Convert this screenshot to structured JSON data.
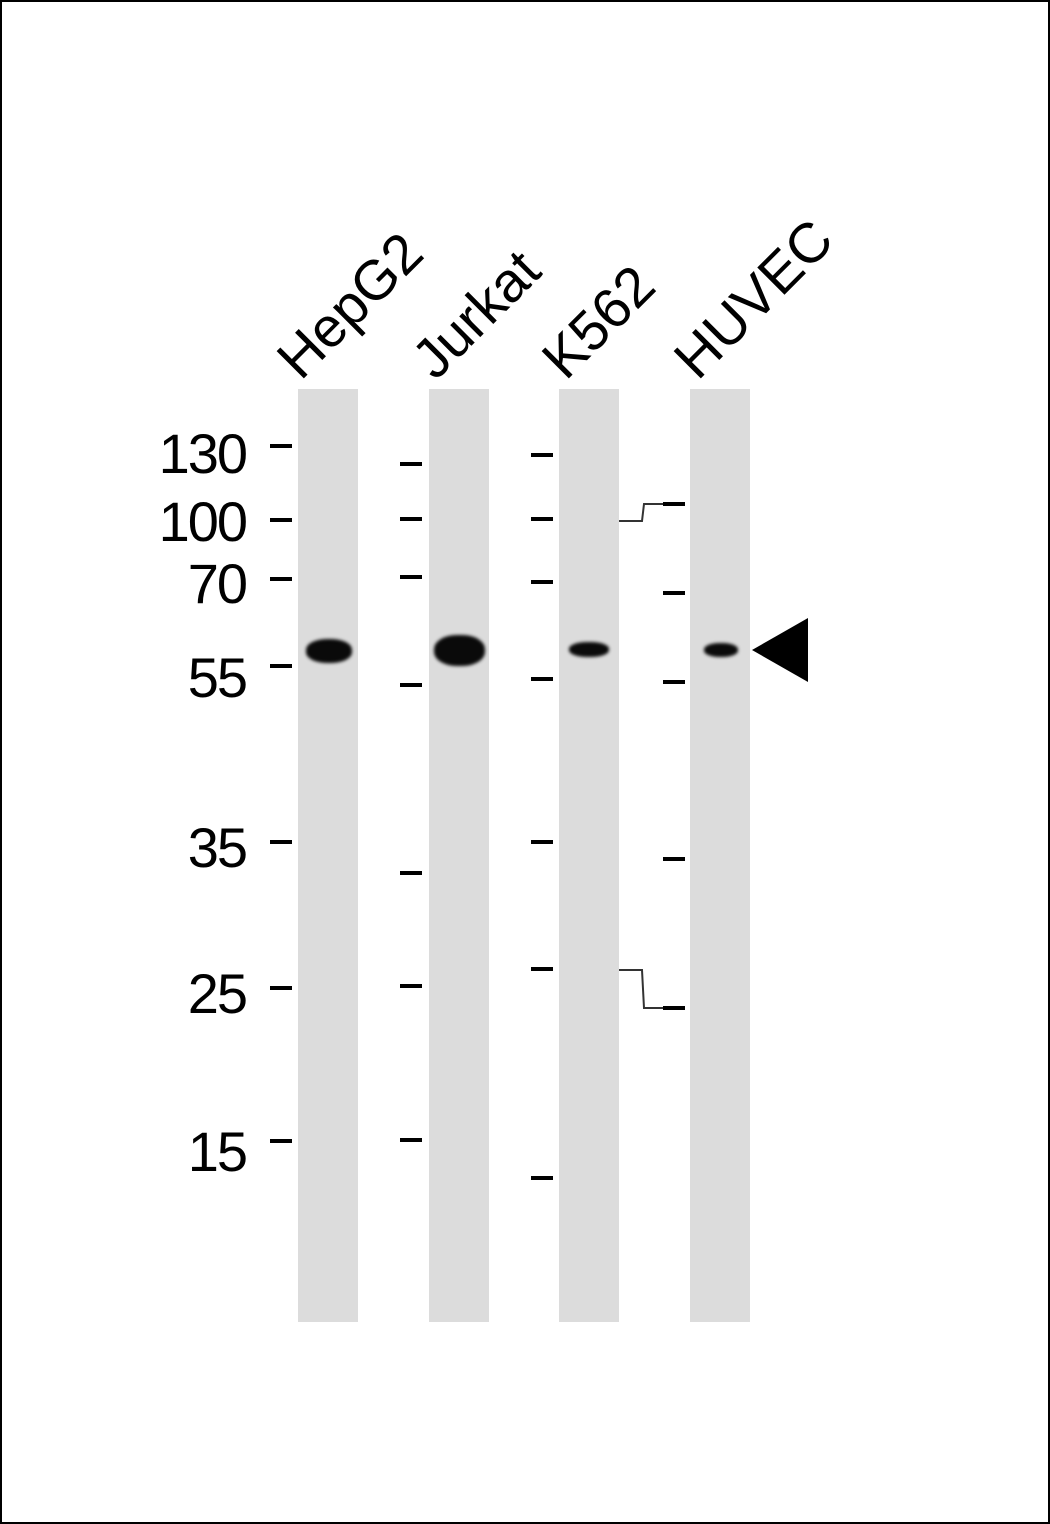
{
  "lanes": [
    {
      "label": "HepG2"
    },
    {
      "label": "Jurkat"
    },
    {
      "label": "K562"
    },
    {
      "label": "HUVEC"
    }
  ],
  "markers": [
    "130",
    "100",
    "70",
    "55",
    "35",
    "25",
    "15"
  ],
  "arrow_icon": "left-pointing-triangle",
  "colors": {
    "lane_background": "#dcdcdc",
    "band": "#0a0a0a"
  }
}
